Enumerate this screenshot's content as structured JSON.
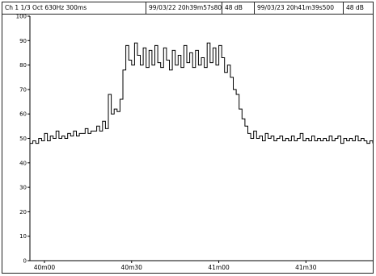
{
  "header": {
    "channel": "Ch  1  1/3 Oct 630Hz 300ms",
    "start_time": "99/03/22 20h39m57s800",
    "start_level": "48 dB",
    "end_time": "99/03/23 20h41m39s500",
    "end_level": "48 dB"
  },
  "chart_data": {
    "type": "line",
    "title": "",
    "xlabel": "",
    "ylabel": "",
    "xlim": [
      0,
      59
    ],
    "ylim": [
      0,
      100
    ],
    "y_ticks": [
      0,
      10,
      20,
      30,
      40,
      50,
      60,
      70,
      80,
      90,
      100
    ],
    "x_ticks": [
      {
        "value": 2.5,
        "label": "40m00"
      },
      {
        "value": 17.5,
        "label": "40m30"
      },
      {
        "value": 32.5,
        "label": "41m00"
      },
      {
        "value": 47.5,
        "label": "41m30"
      }
    ],
    "grid": false,
    "line_color": "#000000",
    "series": [
      {
        "x": [
          0,
          0.5,
          1,
          1.5,
          2,
          2.5,
          3,
          3.5,
          4,
          4.5,
          5,
          5.5,
          6,
          6.5,
          7,
          7.5,
          8,
          8.5,
          9,
          9.5,
          10,
          10.5,
          11,
          11.5,
          12,
          12.5,
          13,
          13.5,
          14,
          14.5,
          15,
          15.5,
          16,
          16.5,
          17,
          17.5,
          18,
          18.5,
          19,
          19.5,
          20,
          20.5,
          21,
          21.5,
          22,
          22.5,
          23,
          23.5,
          24,
          24.5,
          25,
          25.5,
          26,
          26.5,
          27,
          27.5,
          28,
          28.5,
          29,
          29.5,
          30,
          30.5,
          31,
          31.5,
          32,
          32.5,
          33,
          33.5,
          34,
          34.5,
          35,
          35.5,
          36,
          36.5,
          37,
          37.5,
          38,
          38.5,
          39,
          39.5,
          40,
          40.5,
          41,
          41.5,
          42,
          42.5,
          43,
          43.5,
          44,
          44.5,
          45,
          45.5,
          46,
          46.5,
          47,
          47.5,
          48,
          48.5,
          49,
          49.5,
          50,
          50.5,
          51,
          51.5,
          52,
          52.5,
          53,
          53.5,
          54,
          54.5,
          55,
          55.5,
          56,
          56.5,
          57,
          57.5,
          58,
          58.5,
          59
        ],
        "values": [
          48,
          49,
          48,
          50,
          49,
          52,
          49,
          51,
          50,
          53,
          50,
          51,
          50,
          52,
          51,
          53,
          51,
          52,
          52,
          54,
          52,
          53,
          53,
          55,
          53,
          57,
          54,
          68,
          60,
          62,
          61,
          66,
          78,
          88,
          82,
          80,
          89,
          84,
          80,
          87,
          79,
          86,
          80,
          88,
          81,
          79,
          87,
          82,
          78,
          86,
          80,
          84,
          79,
          88,
          81,
          85,
          79,
          86,
          80,
          83,
          79,
          89,
          81,
          87,
          80,
          88,
          83,
          77,
          80,
          75,
          70,
          68,
          62,
          58,
          55,
          52,
          50,
          53,
          50,
          51,
          49,
          52,
          50,
          51,
          49,
          50,
          51,
          49,
          50,
          49,
          51,
          49,
          50,
          52,
          49,
          50,
          49,
          51,
          49,
          50,
          49,
          50,
          49,
          51,
          49,
          50,
          51,
          48,
          50,
          49,
          50,
          49,
          51,
          49,
          50,
          49,
          48,
          49,
          48
        ]
      }
    ]
  }
}
